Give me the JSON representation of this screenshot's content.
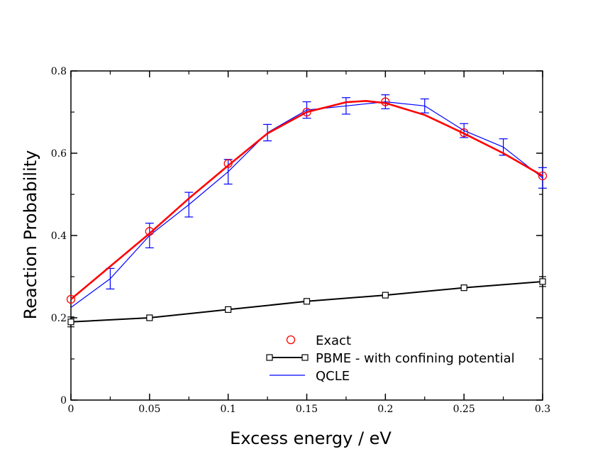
{
  "chart_data": {
    "type": "line",
    "title": "",
    "xlabel": "Excess energy / eV",
    "ylabel": "Reaction Probability",
    "xlim": [
      0,
      0.3
    ],
    "ylim": [
      0,
      0.8
    ],
    "xticks": [
      0,
      0.05,
      0.1,
      0.15,
      0.2,
      0.25,
      0.3
    ],
    "xtick_labels": [
      "0",
      "0.05",
      "0.1",
      "0.15",
      "0.2",
      "0.25",
      "0.3"
    ],
    "yticks": [
      0,
      0.2,
      0.4,
      0.6,
      0.8
    ],
    "ytick_labels": [
      "0",
      "0.2",
      "0.4",
      "0.6",
      "0.8"
    ],
    "grid": false,
    "legend_position": "bottom-right",
    "colors": {
      "exact": "#ff0000",
      "pbme": "#000000",
      "qcle": "#0000ff"
    },
    "series": [
      {
        "key": "exact",
        "name": "Exact",
        "style": "markers",
        "marker": "circle",
        "x": [
          0,
          0.05,
          0.1,
          0.15,
          0.2,
          0.25,
          0.3
        ],
        "y": [
          0.245,
          0.41,
          0.575,
          0.7,
          0.725,
          0.65,
          0.545
        ]
      },
      {
        "key": "exact_fit",
        "name": "",
        "style": "smooth-line",
        "x": [
          0,
          0.025,
          0.05,
          0.075,
          0.1,
          0.125,
          0.15,
          0.175,
          0.1875,
          0.2,
          0.225,
          0.25,
          0.275,
          0.3
        ],
        "y": [
          0.245,
          0.325,
          0.405,
          0.49,
          0.57,
          0.648,
          0.7,
          0.724,
          0.727,
          0.722,
          0.693,
          0.648,
          0.6,
          0.545
        ]
      },
      {
        "key": "pbme",
        "name": "PBME - with confining potential",
        "style": "line-markers",
        "marker": "square",
        "x": [
          0,
          0.05,
          0.1,
          0.15,
          0.2,
          0.25,
          0.3
        ],
        "y": [
          0.19,
          0.2,
          0.22,
          0.24,
          0.255,
          0.273,
          0.288
        ],
        "yerr": [
          0.012,
          0.0,
          0.0,
          0.0,
          0.0,
          0.0,
          0.012
        ]
      },
      {
        "key": "qcle",
        "name": "QCLE",
        "style": "line-errorbars",
        "x": [
          0,
          0.025,
          0.05,
          0.075,
          0.1,
          0.125,
          0.15,
          0.175,
          0.2,
          0.225,
          0.25,
          0.275,
          0.3
        ],
        "y": [
          0.225,
          0.295,
          0.4,
          0.475,
          0.555,
          0.65,
          0.705,
          0.715,
          0.725,
          0.715,
          0.655,
          0.615,
          0.54
        ],
        "yerr": [
          0.0,
          0.025,
          0.03,
          0.03,
          0.03,
          0.02,
          0.02,
          0.02,
          0.017,
          0.017,
          0.017,
          0.02,
          0.025
        ]
      }
    ],
    "legend": [
      {
        "key": "exact",
        "label": "Exact"
      },
      {
        "key": "pbme",
        "label": "PBME - with confining potential"
      },
      {
        "key": "qcle",
        "label": "QCLE"
      }
    ]
  }
}
